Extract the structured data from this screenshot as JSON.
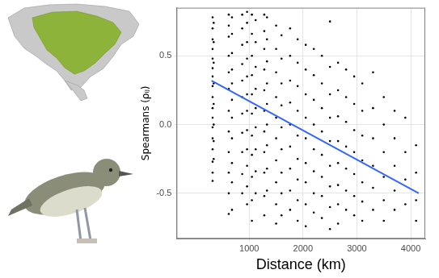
{
  "chart_data": {
    "type": "scatter",
    "x_label": "Distance (km)",
    "y_label": "Spearmans (ρᵢⱼ)",
    "xlim": [
      -350,
      4270
    ],
    "ylim": [
      -0.83,
      0.85
    ],
    "xticks": [
      1000,
      2000,
      3000,
      4000
    ],
    "yticks": [
      -0.5,
      {
        "value": 0,
        "label": "0.0"
      },
      0.5
    ],
    "grid": true,
    "series": [
      {
        "type": "scatter",
        "color": "#000000",
        "marker": "circle",
        "x": [
          320,
          320,
          320,
          320,
          320,
          320,
          320,
          320,
          320,
          320,
          320,
          320,
          320,
          320,
          320,
          320,
          320,
          340,
          340,
          340,
          340,
          340,
          340,
          340,
          340,
          620,
          620,
          620,
          620,
          620,
          620,
          620,
          620,
          620,
          620,
          620,
          620,
          680,
          680,
          680,
          680,
          680,
          680,
          680,
          680,
          680,
          680,
          680,
          870,
          870,
          870,
          870,
          870,
          870,
          870,
          870,
          870,
          870,
          870,
          960,
          960,
          960,
          960,
          960,
          960,
          960,
          960,
          960,
          960,
          960,
          960,
          1050,
          1050,
          1050,
          1050,
          1050,
          1050,
          1050,
          1050,
          1050,
          1050,
          1050,
          1120,
          1120,
          1120,
          1120,
          1120,
          1120,
          1120,
          1120,
          1120,
          1280,
          1280,
          1280,
          1280,
          1280,
          1280,
          1280,
          1280,
          1280,
          1280,
          1280,
          1330,
          1330,
          1330,
          1330,
          1330,
          1330,
          1330,
          1330,
          1330,
          1500,
          1500,
          1500,
          1500,
          1500,
          1500,
          1500,
          1500,
          1500,
          1500,
          1600,
          1600,
          1600,
          1600,
          1600,
          1600,
          1600,
          1600,
          1600,
          1760,
          1760,
          1760,
          1760,
          1760,
          1760,
          1760,
          1760,
          1760,
          1900,
          1900,
          1900,
          1900,
          1900,
          1900,
          1900,
          1900,
          1900,
          2050,
          2050,
          2050,
          2050,
          2050,
          2050,
          2050,
          2050,
          2050,
          2200,
          2200,
          2200,
          2200,
          2200,
          2200,
          2200,
          2200,
          2350,
          2350,
          2350,
          2350,
          2350,
          2350,
          2350,
          2350,
          2500,
          2500,
          2500,
          2500,
          2500,
          2500,
          2500,
          2500,
          2500,
          2650,
          2650,
          2650,
          2650,
          2650,
          2650,
          2650,
          2650,
          2800,
          2800,
          2800,
          2800,
          2800,
          2800,
          2800,
          2950,
          2950,
          2950,
          2950,
          2950,
          2950,
          2950,
          3100,
          3100,
          3100,
          3100,
          3100,
          3100,
          3100,
          3300,
          3300,
          3300,
          3300,
          3300,
          3300,
          3500,
          3500,
          3500,
          3500,
          3500,
          3500,
          3700,
          3700,
          3700,
          3700,
          3700,
          3900,
          3900,
          3900,
          3900,
          4100,
          4100,
          4100,
          4100
        ],
        "values": [
          0.78,
          0.7,
          0.62,
          0.55,
          0.48,
          0.41,
          0.35,
          0.28,
          0.2,
          0.12,
          0.05,
          -0.02,
          -0.1,
          -0.18,
          -0.27,
          -0.35,
          -0.41,
          0.74,
          0.6,
          0.45,
          0.3,
          0.15,
          0.0,
          -0.12,
          -0.25,
          0.8,
          0.72,
          0.64,
          0.5,
          0.38,
          0.26,
          0.1,
          -0.05,
          -0.2,
          -0.35,
          -0.5,
          -0.65,
          0.78,
          0.66,
          0.52,
          0.4,
          0.3,
          0.18,
          0.05,
          -0.1,
          -0.28,
          -0.42,
          -0.62,
          0.8,
          0.7,
          0.58,
          0.44,
          0.32,
          0.2,
          0.08,
          -0.06,
          -0.2,
          -0.36,
          -0.5,
          0.82,
          0.74,
          0.6,
          0.48,
          0.35,
          0.22,
          0.1,
          -0.04,
          -0.18,
          -0.3,
          -0.45,
          -0.58,
          0.8,
          0.66,
          0.5,
          0.36,
          0.22,
          0.08,
          -0.08,
          -0.22,
          -0.38,
          -0.55,
          -0.7,
          0.76,
          0.6,
          0.42,
          0.26,
          0.12,
          -0.02,
          -0.18,
          -0.34,
          -0.5,
          0.8,
          0.68,
          0.55,
          0.4,
          0.25,
          0.1,
          -0.05,
          -0.2,
          -0.35,
          -0.52,
          -0.66,
          0.78,
          0.62,
          0.46,
          0.3,
          0.15,
          0.0,
          -0.15,
          -0.32,
          -0.48,
          0.72,
          0.55,
          0.38,
          0.2,
          0.05,
          -0.1,
          -0.26,
          -0.42,
          -0.58,
          -0.72,
          0.65,
          0.48,
          0.3,
          0.14,
          -0.02,
          -0.18,
          -0.35,
          -0.5,
          -0.66,
          0.7,
          0.5,
          0.32,
          0.16,
          0.0,
          -0.16,
          -0.32,
          -0.48,
          -0.62,
          0.62,
          0.45,
          0.28,
          0.1,
          -0.08,
          -0.25,
          -0.4,
          -0.55,
          -0.7,
          0.58,
          0.4,
          0.22,
          0.05,
          -0.1,
          -0.28,
          -0.42,
          -0.58,
          -0.74,
          0.55,
          0.36,
          0.18,
          0.0,
          -0.18,
          -0.34,
          -0.5,
          -0.64,
          0.5,
          0.3,
          0.12,
          -0.05,
          -0.22,
          -0.38,
          -0.52,
          -0.68,
          0.75,
          0.42,
          0.22,
          0.05,
          -0.12,
          -0.3,
          -0.45,
          -0.6,
          -0.76,
          0.45,
          0.25,
          0.06,
          -0.12,
          -0.28,
          -0.44,
          -0.58,
          -0.72,
          0.4,
          0.2,
          0.02,
          -0.16,
          -0.32,
          -0.48,
          -0.62,
          0.35,
          0.15,
          -0.04,
          -0.2,
          -0.36,
          -0.52,
          -0.66,
          0.3,
          0.1,
          -0.08,
          -0.26,
          -0.42,
          -0.56,
          -0.7,
          0.38,
          0.12,
          -0.1,
          -0.3,
          -0.46,
          -0.62,
          0.2,
          0.0,
          -0.2,
          -0.38,
          -0.55,
          -0.7,
          0.1,
          -0.1,
          -0.3,
          -0.48,
          -0.62,
          0.05,
          -0.2,
          -0.4,
          -0.58,
          -0.15,
          -0.35,
          -0.55,
          -0.7
        ]
      },
      {
        "type": "line",
        "color": "#3366FF",
        "line_style": "solid",
        "x": [
          300,
          4150
        ],
        "values": [
          0.32,
          -0.5
        ]
      }
    ]
  }
}
